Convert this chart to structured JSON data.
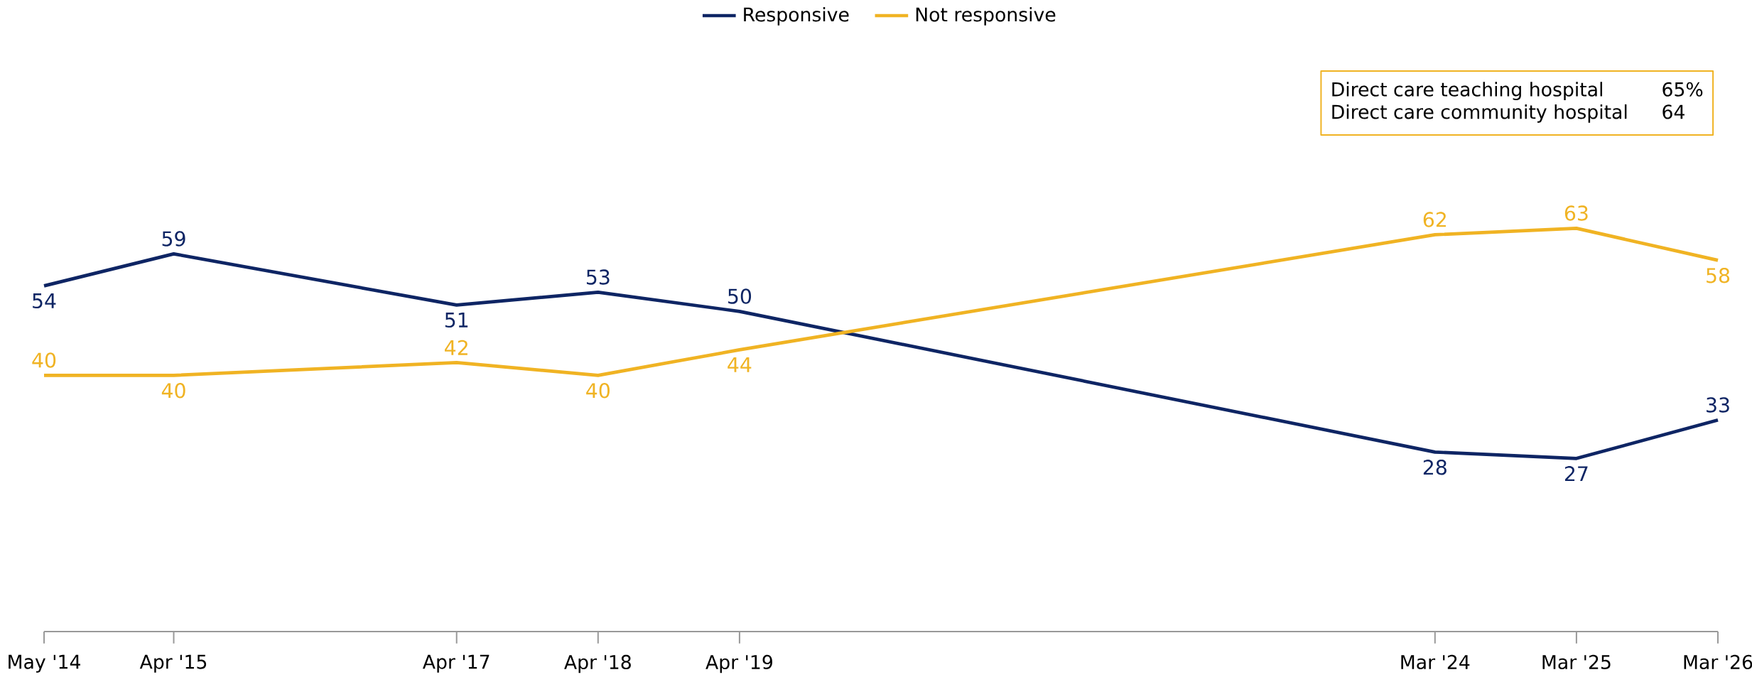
{
  "chart_data": {
    "type": "line",
    "x": [
      "2014-05",
      "2015-04",
      "2017-04",
      "2018-04",
      "2019-04",
      "2024-03",
      "2025-03",
      "2026-03"
    ],
    "series": [
      {
        "name": "Responsive",
        "color": "#0e2564",
        "values": [
          54,
          59,
          51,
          53,
          50,
          28,
          27,
          33
        ]
      },
      {
        "name": "Not responsive",
        "color": "#f0b323",
        "values": [
          40,
          40,
          42,
          40,
          44,
          62,
          63,
          58
        ]
      }
    ],
    "xlim": [
      "2014-05",
      "2026-03"
    ],
    "xticks": [
      {
        "value": "2014-05",
        "label": "May '14"
      },
      {
        "value": "2015-04",
        "label": "Apr '15"
      },
      {
        "value": "2017-04",
        "label": "Apr '17"
      },
      {
        "value": "2018-04",
        "label": "Apr '18"
      },
      {
        "value": "2019-04",
        "label": "Apr '19"
      },
      {
        "value": "2024-03",
        "label": "Mar '24"
      },
      {
        "value": "2025-03",
        "label": "Mar '25"
      },
      {
        "value": "2026-03",
        "label": "Mar '26"
      }
    ],
    "tick_labels": "x",
    "data_labels": true,
    "legend": "top",
    "grid": false,
    "marker": "none",
    "line_style": "solid",
    "annotations": [
      "Direct care teaching hospital",
      "65%",
      "Direct care community hospital",
      "64"
    ]
  }
}
